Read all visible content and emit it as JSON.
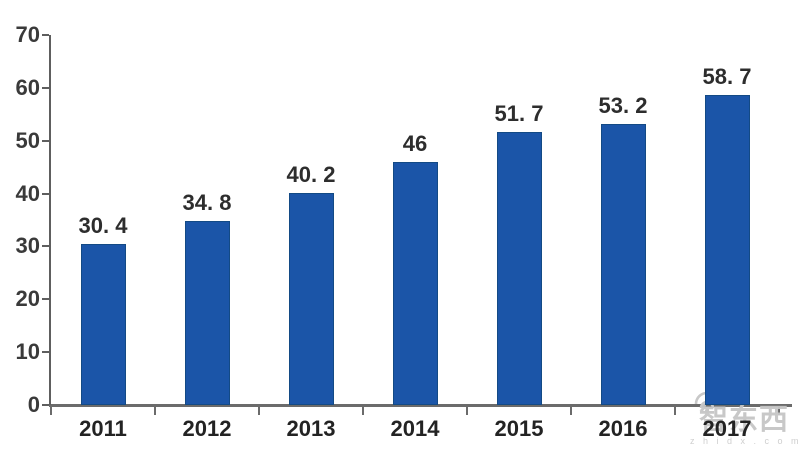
{
  "chart_data": {
    "type": "bar",
    "title": "",
    "xlabel": "",
    "ylabel": "",
    "categories": [
      "2011",
      "2012",
      "2013",
      "2014",
      "2015",
      "2016",
      "2017"
    ],
    "values": [
      30.4,
      34.8,
      40.2,
      46,
      51.7,
      53.2,
      58.7
    ],
    "value_labels": [
      "30. 4",
      "34. 8",
      "40. 2",
      "46",
      "51. 7",
      "53. 2",
      "58. 7"
    ],
    "ylim": [
      0,
      70
    ],
    "ytick_interval": 10,
    "ytick_labels": [
      "0",
      "10",
      "20",
      "30",
      "40",
      "50",
      "60",
      "70"
    ],
    "grid": false,
    "legend": "none",
    "bar_color": "#1b55a8",
    "bar_border_color": "#134a85",
    "axis_color": "#6b6b6b",
    "text_color": "#2d2d2d"
  },
  "watermark": {
    "icon": "wifi-signal-icon",
    "logo_text": "智东西",
    "url_text": "z h i d x . c o m",
    "color": "#c8c8c8"
  }
}
